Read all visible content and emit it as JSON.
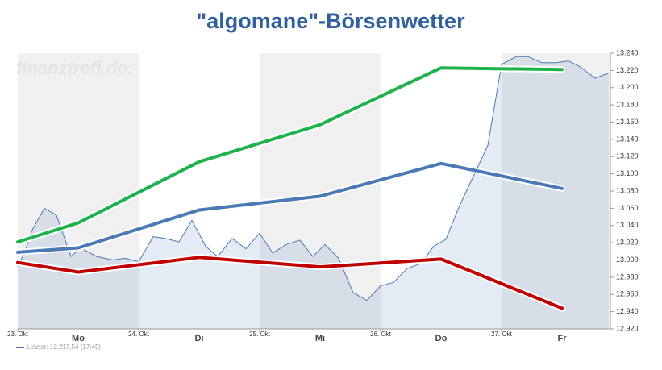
{
  "chart_data": {
    "type": "line",
    "title": "\"algomane\"-Börsenwetter",
    "watermark": "finanztreff.de:",
    "footer": "Letzter: 13.217,54 (17:45)",
    "xlim": [
      0,
      4.9
    ],
    "xticks": [
      {
        "value": 0,
        "label": "23. Okt"
      },
      {
        "value": 1,
        "label": "24. Okt"
      },
      {
        "value": 2,
        "label": "25. Okt"
      },
      {
        "value": 3,
        "label": "26. Okt"
      },
      {
        "value": 4,
        "label": "27. Okt"
      }
    ],
    "day_labels": [
      {
        "value": 0.5,
        "label": "Mo"
      },
      {
        "value": 1.5,
        "label": "Di"
      },
      {
        "value": 2.5,
        "label": "Mi"
      },
      {
        "value": 3.5,
        "label": "Do"
      },
      {
        "value": 4.5,
        "label": "Fr"
      }
    ],
    "ylim": [
      12920,
      13240
    ],
    "yticks": [
      {
        "value": 12920,
        "label": "12.920"
      },
      {
        "value": 12940,
        "label": "12.940"
      },
      {
        "value": 12960,
        "label": "12.960"
      },
      {
        "value": 12980,
        "label": "12.980"
      },
      {
        "value": 13000,
        "label": "13.000"
      },
      {
        "value": 13020,
        "label": "13.020"
      },
      {
        "value": 13040,
        "label": "13.040"
      },
      {
        "value": 13060,
        "label": "13.060"
      },
      {
        "value": 13080,
        "label": "13.080"
      },
      {
        "value": 13100,
        "label": "13.100"
      },
      {
        "value": 13120,
        "label": "13.120"
      },
      {
        "value": 13140,
        "label": "13.140"
      },
      {
        "value": 13160,
        "label": "13.160"
      },
      {
        "value": 13180,
        "label": "13.180"
      },
      {
        "value": 13200,
        "label": "13.200"
      },
      {
        "value": 13220,
        "label": "13.220"
      },
      {
        "value": 13240,
        "label": "13.240"
      }
    ],
    "series": [
      {
        "color": "#4a7ab5",
        "area": true,
        "width": 1,
        "x": [
          0,
          0.053,
          0.12,
          0.22,
          0.32,
          0.44,
          0.52,
          0.653,
          0.787,
          0.887,
          1,
          1.12,
          1.22,
          1.333,
          1.44,
          1.553,
          1.653,
          1.773,
          1.887,
          2,
          2.107,
          2.22,
          2.333,
          2.44,
          2.54,
          2.653,
          2.773,
          2.887,
          3,
          3.107,
          3.22,
          3.333,
          3.44,
          3.54,
          3.653,
          3.787,
          3.887,
          4,
          4.12,
          4.22,
          4.333,
          4.453,
          4.553,
          4.653,
          4.773,
          4.887
        ],
        "values": [
          12993,
          13007,
          13035,
          13060,
          13052,
          13004,
          13014,
          13004,
          13000,
          13002,
          12998,
          13027,
          13025,
          13021,
          13046,
          13016,
          13004,
          13025,
          13013,
          13031,
          13008,
          13018,
          13023,
          13004,
          13018,
          13002,
          12962,
          12953,
          12970,
          12974,
          12990,
          12996,
          13016,
          13024,
          13063,
          13103,
          13133,
          13227,
          13236,
          13236,
          13229,
          13229,
          13231,
          13224,
          13211,
          13217
        ]
      },
      {
        "color": "#1db34a",
        "width": 4,
        "x": [
          0,
          0.5,
          1.5,
          2.5,
          3.5,
          4.5
        ],
        "values": [
          13021,
          13043,
          13114,
          13157,
          13223,
          13221
        ]
      },
      {
        "color": "#4a7ab5",
        "width": 4,
        "x": [
          0,
          0.5,
          1.5,
          2.5,
          3.5,
          4.5
        ],
        "values": [
          13009,
          13014,
          13058,
          13074,
          13112,
          13083
        ]
      },
      {
        "color": "#c00000",
        "width": 4,
        "x": [
          0,
          0.5,
          1.5,
          2.5,
          3.5,
          4.5
        ],
        "values": [
          12997,
          12986,
          13003,
          12992,
          13001,
          12944
        ]
      }
    ]
  }
}
